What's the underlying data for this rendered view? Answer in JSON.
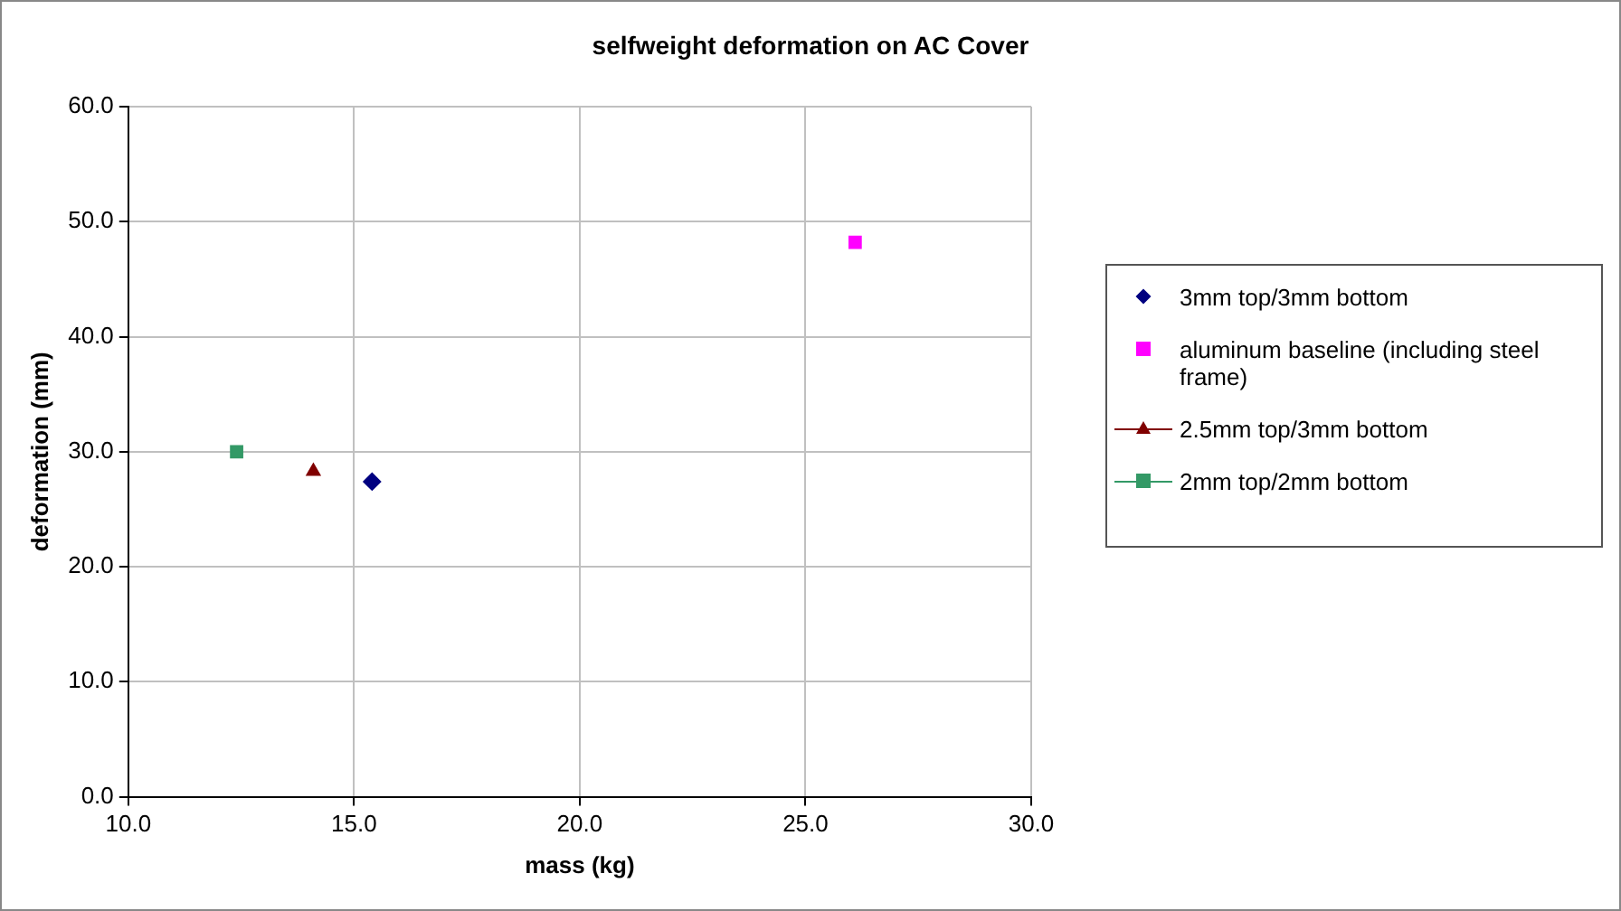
{
  "chart_data": {
    "type": "scatter",
    "title": "selfweight deformation on AC Cover",
    "xlabel": "mass (kg)",
    "ylabel": "deformation (mm)",
    "xlim": [
      10,
      30
    ],
    "xticks": [
      {
        "value": 10,
        "label": "10.0"
      },
      {
        "value": 15,
        "label": "15.0"
      },
      {
        "value": 20,
        "label": "20.0"
      },
      {
        "value": 25,
        "label": "25.0"
      },
      {
        "value": 30,
        "label": "30.0"
      }
    ],
    "ylim": [
      0,
      60
    ],
    "yticks": [
      {
        "value": 0,
        "label": "0.0"
      },
      {
        "value": 10,
        "label": "10.0"
      },
      {
        "value": 20,
        "label": "20.0"
      },
      {
        "value": 30,
        "label": "30.0"
      },
      {
        "value": 40,
        "label": "40.0"
      },
      {
        "value": 50,
        "label": "50.0"
      },
      {
        "value": 60,
        "label": "60.0"
      }
    ],
    "grid": true,
    "legend": "right",
    "series": [
      {
        "name": "3mm top/3mm bottom",
        "type": "scatter",
        "marker": "diamond",
        "color": "#000080",
        "x": [
          15.4
        ],
        "values": [
          27.4
        ]
      },
      {
        "name": "aluminum baseline (including steel frame)",
        "type": "scatter",
        "marker": "square",
        "color": "#ff00ff",
        "x": [
          26.1
        ],
        "values": [
          48.2
        ]
      },
      {
        "name": "2.5mm top/3mm bottom",
        "type": "line",
        "marker": "triangle",
        "color": "#800000",
        "x": [
          14.1
        ],
        "values": [
          28.3
        ]
      },
      {
        "name": "2mm top/2mm bottom",
        "type": "line",
        "marker": "square",
        "color": "#339966",
        "x": [
          12.4
        ],
        "values": [
          30.0
        ]
      }
    ]
  }
}
